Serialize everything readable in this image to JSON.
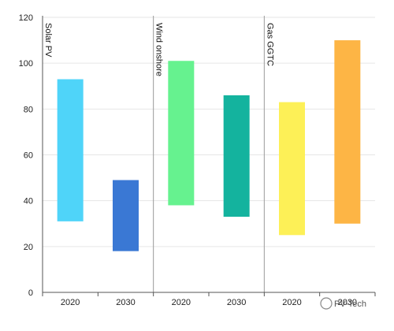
{
  "chart_data": {
    "type": "bar",
    "subtype": "floating-range",
    "title": "",
    "xlabel": "",
    "ylabel": "",
    "ylim": [
      0,
      120
    ],
    "yticks": [
      0,
      20,
      40,
      60,
      80,
      100,
      120
    ],
    "grid": true,
    "legend": "none",
    "groups": [
      {
        "name": "Solar PV",
        "bars": [
          {
            "category": "2020",
            "low": 31,
            "high": 93,
            "color": "#4fd4f9"
          },
          {
            "category": "2030",
            "low": 18,
            "high": 49,
            "color": "#3a78d4"
          }
        ]
      },
      {
        "name": "Wind onshore",
        "bars": [
          {
            "category": "2020",
            "low": 38,
            "high": 101,
            "color": "#66f28f"
          },
          {
            "category": "2030",
            "low": 33,
            "high": 86,
            "color": "#14b39e"
          }
        ]
      },
      {
        "name": "Gas GGTC",
        "bars": [
          {
            "category": "2020",
            "low": 25,
            "high": 83,
            "color": "#fdf057"
          },
          {
            "category": "2030",
            "low": 30,
            "high": 110,
            "color": "#fdb545"
          }
        ]
      }
    ]
  },
  "watermark": {
    "brand": "PV-Tech"
  }
}
